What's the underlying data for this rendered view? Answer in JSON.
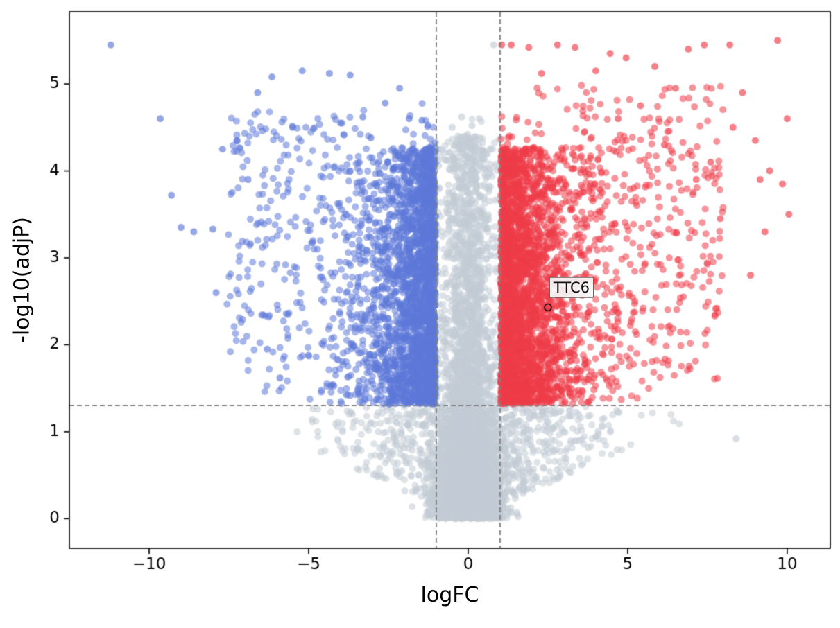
{
  "chart_data": {
    "type": "scatter",
    "subtype": "volcano-plot",
    "title": "",
    "xlabel": "logFC",
    "ylabel": "-log10(adjP)",
    "xlim": [
      -12.5,
      11.35
    ],
    "ylim": [
      -0.34,
      5.83
    ],
    "x_ticks": [
      -10,
      -5,
      0,
      5,
      10
    ],
    "y_ticks": [
      0,
      1,
      2,
      3,
      4,
      5
    ],
    "grid": false,
    "legend": null,
    "axis_color": "#000000",
    "background": "#ffffff",
    "thresholds": {
      "vlines": [
        -1,
        1
      ],
      "hline": 1.301,
      "line_style": "dashed",
      "line_color": "#7f7f7f"
    },
    "colors": {
      "up": "#ee3d49",
      "down": "#5c78d9",
      "ns": "#c3ccd6",
      "point_alpha": 0.55
    },
    "annotation": {
      "label": "TTC6",
      "x": 2.5,
      "y": 2.43,
      "marker": "open-circle",
      "marker_color": "#000000"
    },
    "point_cloud": {
      "seed": 42,
      "marker_radius_px": 5,
      "groups": [
        {
          "name": "ns-bottom-core",
          "color": "ns",
          "n": 2400,
          "x": {
            "type": "normal",
            "mu": 0,
            "sigma": 0.55,
            "clip": [
              -1.8,
              1.8
            ]
          },
          "y": {
            "type": "halfnormal",
            "offset": 0,
            "sigma": 0.55,
            "clip": [
              0,
              5.2
            ]
          }
        },
        {
          "name": "ns-center-column",
          "color": "ns",
          "n": 2400,
          "x": {
            "type": "normal",
            "mu": 0,
            "sigma": 0.45,
            "clip": [
              -0.99,
              0.99
            ]
          },
          "y": {
            "type": "mix",
            "parts": [
              {
                "w": 0.5,
                "type": "halfnormal",
                "offset": 0,
                "sigma": 1.7,
                "clip": [
                  0,
                  4.6
                ]
              },
              {
                "w": 0.5,
                "type": "power",
                "offset": 0.1,
                "scale": 4.3,
                "k": 1.0,
                "clip": [
                  0,
                  4.6
                ]
              }
            ]
          }
        },
        {
          "name": "ns-below-threshold-fan",
          "color": "ns",
          "n": 800,
          "x": {
            "type": "normal",
            "mu": 0,
            "sigma": 2.1,
            "clip": [
              -6.8,
              6.8
            ]
          },
          "y": {
            "type": "vband",
            "slope": 0.16,
            "ymax": 1.29
          }
        },
        {
          "name": "down-significant",
          "color": "down",
          "n": 2500,
          "x": {
            "type": "exp",
            "offset": -1.02,
            "mean": 0.85,
            "sign": -1,
            "clip": [
              -8.2,
              -1.02
            ]
          },
          "y": {
            "type": "mix",
            "parts": [
              {
                "w": 0.78,
                "type": "power",
                "offset": 1.32,
                "scale": 2.95,
                "k": 1.15,
                "clip": [
                  1.32,
                  4.3
                ]
              },
              {
                "w": 0.22,
                "type": "halfnormal",
                "offset": 1.32,
                "sigma": 1.5,
                "clip": [
                  1.32,
                  5.0
                ]
              }
            ]
          }
        },
        {
          "name": "down-upper-fan",
          "color": "down",
          "n": 220,
          "x": {
            "type": "uniform",
            "min": -7.6,
            "max": -3.2
          },
          "y": {
            "type": "uniform",
            "min": 1.8,
            "max": 4.7
          }
        },
        {
          "name": "up-significant",
          "color": "up",
          "n": 2900,
          "x": {
            "type": "exp",
            "offset": 1.02,
            "mean": 0.95,
            "sign": 1,
            "clip": [
              1.02,
              8.6
            ]
          },
          "y": {
            "type": "mix",
            "parts": [
              {
                "w": 0.78,
                "type": "power",
                "offset": 1.32,
                "scale": 2.95,
                "k": 1.15,
                "clip": [
                  1.32,
                  4.3
                ]
              },
              {
                "w": 0.22,
                "type": "halfnormal",
                "offset": 1.32,
                "sigma": 1.5,
                "clip": [
                  1.32,
                  5.0
                ]
              }
            ]
          }
        },
        {
          "name": "up-upper-fan",
          "color": "up",
          "n": 320,
          "x": {
            "type": "uniform",
            "min": 3.2,
            "max": 8.0
          },
          "y": {
            "type": "uniform",
            "min": 1.6,
            "max": 5.0
          }
        }
      ],
      "outliers": {
        "down": [
          [
            -11.2,
            5.45
          ],
          [
            -9.65,
            4.6
          ],
          [
            -9.3,
            3.72
          ],
          [
            -9.0,
            3.35
          ],
          [
            -8.6,
            3.3
          ],
          [
            -8.0,
            3.33
          ],
          [
            -7.9,
            2.6
          ],
          [
            -7.7,
            4.25
          ],
          [
            -7.25,
            4.35
          ],
          [
            -6.9,
            3.9
          ],
          [
            -6.6,
            4.9
          ],
          [
            -6.3,
            1.95
          ],
          [
            -6.15,
            5.08
          ],
          [
            -5.9,
            1.62
          ],
          [
            -5.5,
            4.5
          ],
          [
            -5.2,
            5.15
          ],
          [
            -4.35,
            5.12
          ],
          [
            -4.0,
            4.55
          ],
          [
            -3.7,
            5.1
          ],
          [
            -3.3,
            4.62
          ],
          [
            -3.05,
            4.38
          ],
          [
            -2.6,
            4.78
          ],
          [
            -2.15,
            4.95
          ],
          [
            -1.85,
            4.6
          ],
          [
            -1.45,
            4.58
          ]
        ],
        "up": [
          [
            1.05,
            5.45
          ],
          [
            1.35,
            5.45
          ],
          [
            1.9,
            5.42
          ],
          [
            2.3,
            5.12
          ],
          [
            2.8,
            5.45
          ],
          [
            3.35,
            5.42
          ],
          [
            4.0,
            5.15
          ],
          [
            4.45,
            5.35
          ],
          [
            4.7,
            4.6
          ],
          [
            4.95,
            5.3
          ],
          [
            5.4,
            4.75
          ],
          [
            5.85,
            5.2
          ],
          [
            6.15,
            4.3
          ],
          [
            6.5,
            4.95
          ],
          [
            6.9,
            5.4
          ],
          [
            7.15,
            3.9
          ],
          [
            7.4,
            5.45
          ],
          [
            7.6,
            4.1
          ],
          [
            7.9,
            3.45
          ],
          [
            8.2,
            5.45
          ],
          [
            8.3,
            4.5
          ],
          [
            8.6,
            4.9
          ],
          [
            8.85,
            2.8
          ],
          [
            9.0,
            4.35
          ],
          [
            9.15,
            3.9
          ],
          [
            9.3,
            3.3
          ],
          [
            9.45,
            4.0
          ],
          [
            9.7,
            5.5
          ],
          [
            9.85,
            3.85
          ],
          [
            10.0,
            4.6
          ],
          [
            10.05,
            3.5
          ]
        ],
        "ns": [
          [
            0.8,
            5.45
          ],
          [
            -0.2,
            4.62
          ],
          [
            0.35,
            4.6
          ],
          [
            0.12,
            4.52
          ],
          [
            -0.5,
            4.5
          ],
          [
            8.4,
            0.92
          ]
        ]
      }
    }
  }
}
